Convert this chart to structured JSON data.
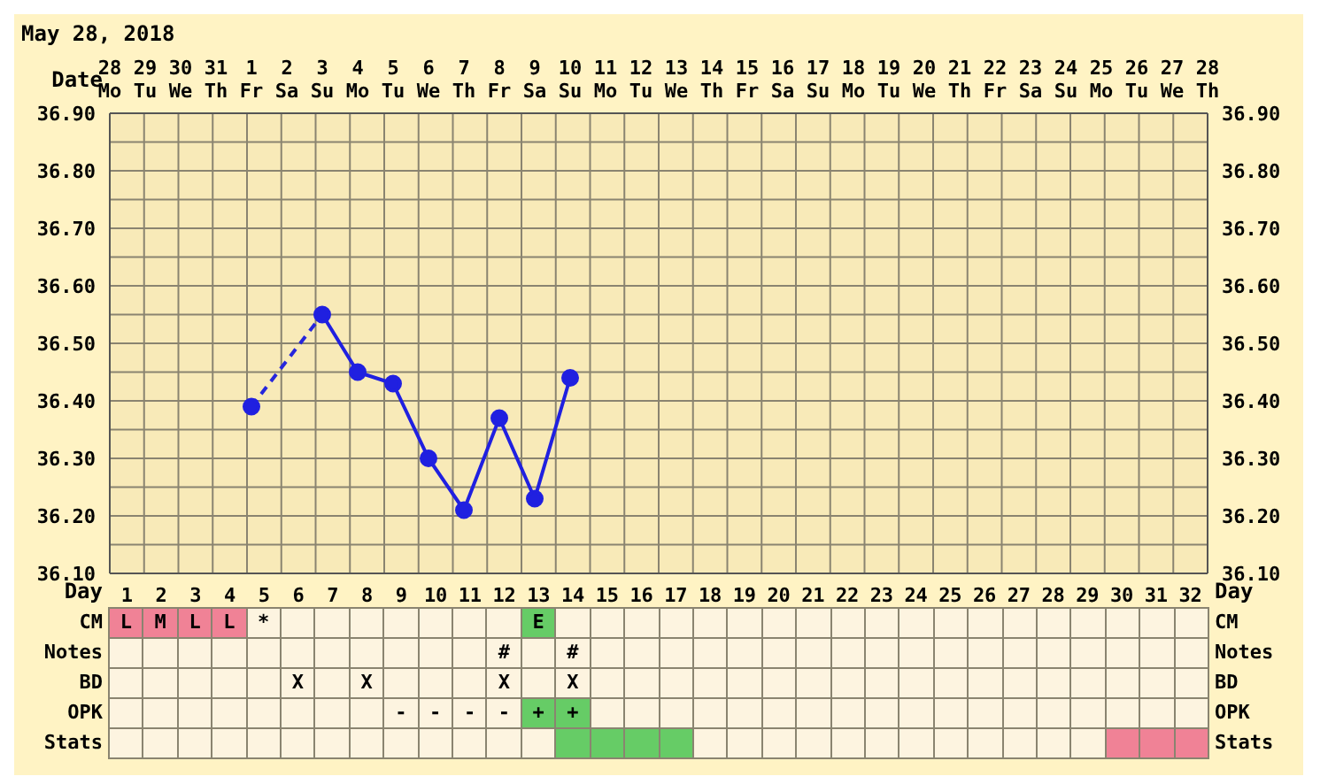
{
  "chart_data": [
    {
      "type": "line",
      "title": "May 28, 2018",
      "xlabel": "Date",
      "x2label": "Day",
      "x2lim": [
        0.5,
        32.5
      ],
      "x2ticks": [
        1,
        2,
        3,
        4,
        5,
        6,
        7,
        8,
        9,
        10,
        11,
        12,
        13,
        14,
        15,
        16,
        17,
        18,
        19,
        20,
        21,
        22,
        23,
        24,
        25,
        26,
        27,
        28,
        29,
        30,
        31,
        32
      ],
      "categories": [
        "28 Mo",
        "29 Tu",
        "30 We",
        "31 Th",
        "1 Fr",
        "2 Sa",
        "3 Su",
        "4 Mo",
        "5 Tu",
        "6 We",
        "7 Th",
        "8 Fr",
        "9 Sa",
        "10 Su",
        "11 Mo",
        "12 Tu",
        "13 We",
        "14 Th",
        "15 Fr",
        "16 Sa",
        "17 Su",
        "18 Mo",
        "19 Tu",
        "20 We",
        "21 Th",
        "22 Fr",
        "23 Sa",
        "24 Su",
        "25 Mo",
        "26 Tu",
        "27 We",
        "28 Th"
      ],
      "series": [
        {
          "color": "#2020e0",
          "marker": "circle",
          "line_style": "solid",
          "values": [
            null,
            null,
            null,
            null,
            36.39,
            null,
            36.55,
            36.45,
            36.43,
            36.3,
            36.21,
            36.37,
            36.23,
            36.44,
            null,
            null,
            null,
            null,
            null,
            null,
            null,
            null,
            null,
            null,
            null,
            null,
            null,
            null,
            null,
            null,
            null,
            null
          ]
        },
        {
          "color": "#2626dc",
          "marker": "none",
          "line_style": "dashed",
          "x": [
            "1 Fr",
            "3 Su"
          ],
          "values": [
            36.39,
            36.55
          ]
        }
      ],
      "ylim": [
        36.1,
        36.9
      ],
      "yticks": [
        {
          "value": 36.1,
          "label": "36.10"
        },
        {
          "value": 36.2,
          "label": "36.20"
        },
        {
          "value": 36.3,
          "label": "36.30"
        },
        {
          "value": 36.4,
          "label": "36.40"
        },
        {
          "value": 36.5,
          "label": "36.50"
        },
        {
          "value": 36.6,
          "label": "36.60"
        },
        {
          "value": 36.7,
          "label": "36.70"
        },
        {
          "value": 36.8,
          "label": "36.80"
        },
        {
          "value": 36.9,
          "label": "36.90"
        }
      ],
      "y2lim": [
        36.1,
        36.9
      ],
      "y2ticks": [
        {
          "value": 36.1,
          "label": "36.10"
        },
        {
          "value": 36.2,
          "label": "36.20"
        },
        {
          "value": 36.3,
          "label": "36.30"
        },
        {
          "value": 36.4,
          "label": "36.40"
        },
        {
          "value": 36.5,
          "label": "36.50"
        },
        {
          "value": 36.6,
          "label": "36.60"
        },
        {
          "value": 36.7,
          "label": "36.70"
        },
        {
          "value": 36.8,
          "label": "36.80"
        },
        {
          "value": 36.9,
          "label": "36.90"
        }
      ],
      "grid": true,
      "legend": false
    },
    {
      "type": "other",
      "categories": [
        null,
        null,
        null,
        null,
        null,
        null,
        null,
        null,
        null,
        null,
        null,
        null,
        null,
        null,
        null,
        null,
        null,
        null,
        null,
        null,
        null,
        null,
        null,
        null,
        null,
        null,
        null,
        null,
        null,
        null,
        null,
        null
      ],
      "y_categories": [
        "CM",
        "Notes",
        "BD",
        "OPK",
        "Stats"
      ],
      "y2_categories": [
        "CM",
        "Notes",
        "BD",
        "OPK",
        "Stats"
      ],
      "cell_labels": [
        [
          "L",
          "M",
          "L",
          "L",
          "*",
          null,
          null,
          null,
          null,
          null,
          null,
          null,
          "E",
          null,
          null,
          null,
          null,
          null,
          null,
          null,
          null,
          null,
          null,
          null,
          null,
          null,
          null,
          null,
          null,
          null,
          null,
          null
        ],
        [
          null,
          null,
          null,
          null,
          null,
          null,
          null,
          null,
          null,
          null,
          null,
          "#",
          null,
          "#",
          null,
          null,
          null,
          null,
          null,
          null,
          null,
          null,
          null,
          null,
          null,
          null,
          null,
          null,
          null,
          null,
          null,
          null
        ],
        [
          null,
          null,
          null,
          null,
          null,
          "X",
          null,
          "X",
          null,
          null,
          null,
          "X",
          null,
          "X",
          null,
          null,
          null,
          null,
          null,
          null,
          null,
          null,
          null,
          null,
          null,
          null,
          null,
          null,
          null,
          null,
          null,
          null
        ],
        [
          null,
          null,
          null,
          null,
          null,
          null,
          null,
          null,
          "-",
          "-",
          "-",
          "-",
          "+",
          "+",
          null,
          null,
          null,
          null,
          null,
          null,
          null,
          null,
          null,
          null,
          null,
          null,
          null,
          null,
          null,
          null,
          null,
          null
        ],
        [
          null,
          null,
          null,
          null,
          null,
          null,
          null,
          null,
          null,
          null,
          null,
          null,
          null,
          null,
          null,
          null,
          null,
          null,
          null,
          null,
          null,
          null,
          null,
          null,
          null,
          null,
          null,
          null,
          null,
          null,
          null,
          null
        ]
      ],
      "colors": [
        [
          "#f08296",
          "#f08296",
          "#f08296",
          "#f08296",
          null,
          null,
          null,
          null,
          null,
          null,
          null,
          null,
          "#66cc66",
          null,
          null,
          null,
          null,
          null,
          null,
          null,
          null,
          null,
          null,
          null,
          null,
          null,
          null,
          null,
          null,
          null,
          null,
          null
        ],
        [
          null,
          null,
          null,
          null,
          null,
          null,
          null,
          null,
          null,
          null,
          null,
          null,
          null,
          null,
          null,
          null,
          null,
          null,
          null,
          null,
          null,
          null,
          null,
          null,
          null,
          null,
          null,
          null,
          null,
          null,
          null,
          null
        ],
        [
          null,
          null,
          null,
          null,
          null,
          null,
          null,
          null,
          null,
          null,
          null,
          null,
          null,
          null,
          null,
          null,
          null,
          null,
          null,
          null,
          null,
          null,
          null,
          null,
          null,
          null,
          null,
          null,
          null,
          null,
          null,
          null
        ],
        [
          null,
          null,
          null,
          null,
          null,
          null,
          null,
          null,
          null,
          null,
          null,
          null,
          "#66cc66",
          "#66cc66",
          null,
          null,
          null,
          null,
          null,
          null,
          null,
          null,
          null,
          null,
          null,
          null,
          null,
          null,
          null,
          null,
          null,
          null
        ],
        [
          null,
          null,
          null,
          null,
          null,
          null,
          null,
          null,
          null,
          null,
          null,
          null,
          null,
          "#66cc66",
          "#66cc66",
          "#66cc66",
          "#66cc66",
          null,
          null,
          null,
          null,
          null,
          null,
          null,
          null,
          null,
          null,
          null,
          null,
          "#f08296",
          "#f08296",
          "#f08296"
        ]
      ]
    }
  ]
}
